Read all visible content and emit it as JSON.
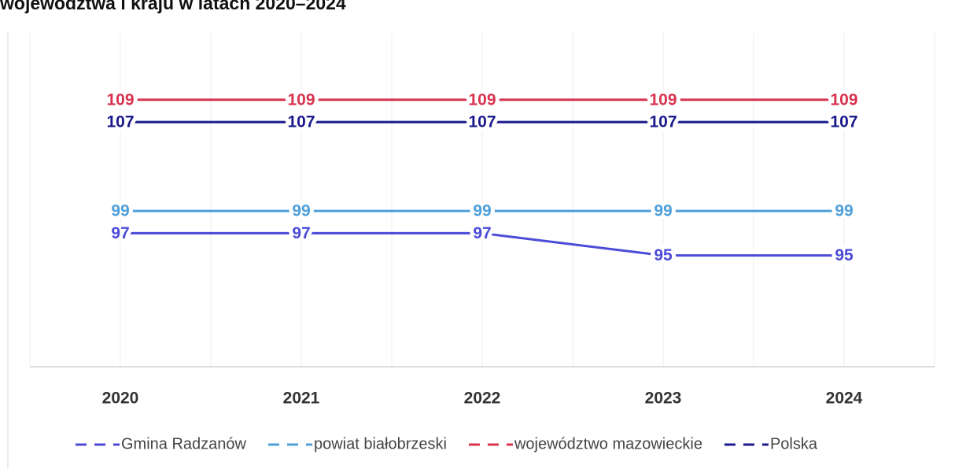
{
  "chart_data": {
    "type": "line",
    "title": "województwa i kraju w latach 2020–2024",
    "categories": [
      "2020",
      "2021",
      "2022",
      "2023",
      "2024"
    ],
    "series": [
      {
        "name": "Gmina Radzanów",
        "color": "#4b4bd8",
        "values": [
          97,
          97,
          97,
          95,
          95
        ]
      },
      {
        "name": "powiat białobrzeski",
        "color": "#4f9fdb",
        "values": [
          99,
          99,
          99,
          99,
          99
        ]
      },
      {
        "name": "województwo mazowieckie",
        "color": "#d8334f",
        "values": [
          109,
          109,
          109,
          109,
          109
        ]
      },
      {
        "name": "Polska",
        "color": "#1a1a8c",
        "values": [
          107,
          107,
          107,
          107,
          107
        ]
      }
    ],
    "ylim": [
      85,
      115
    ],
    "grid": true,
    "legend": "bottom"
  }
}
